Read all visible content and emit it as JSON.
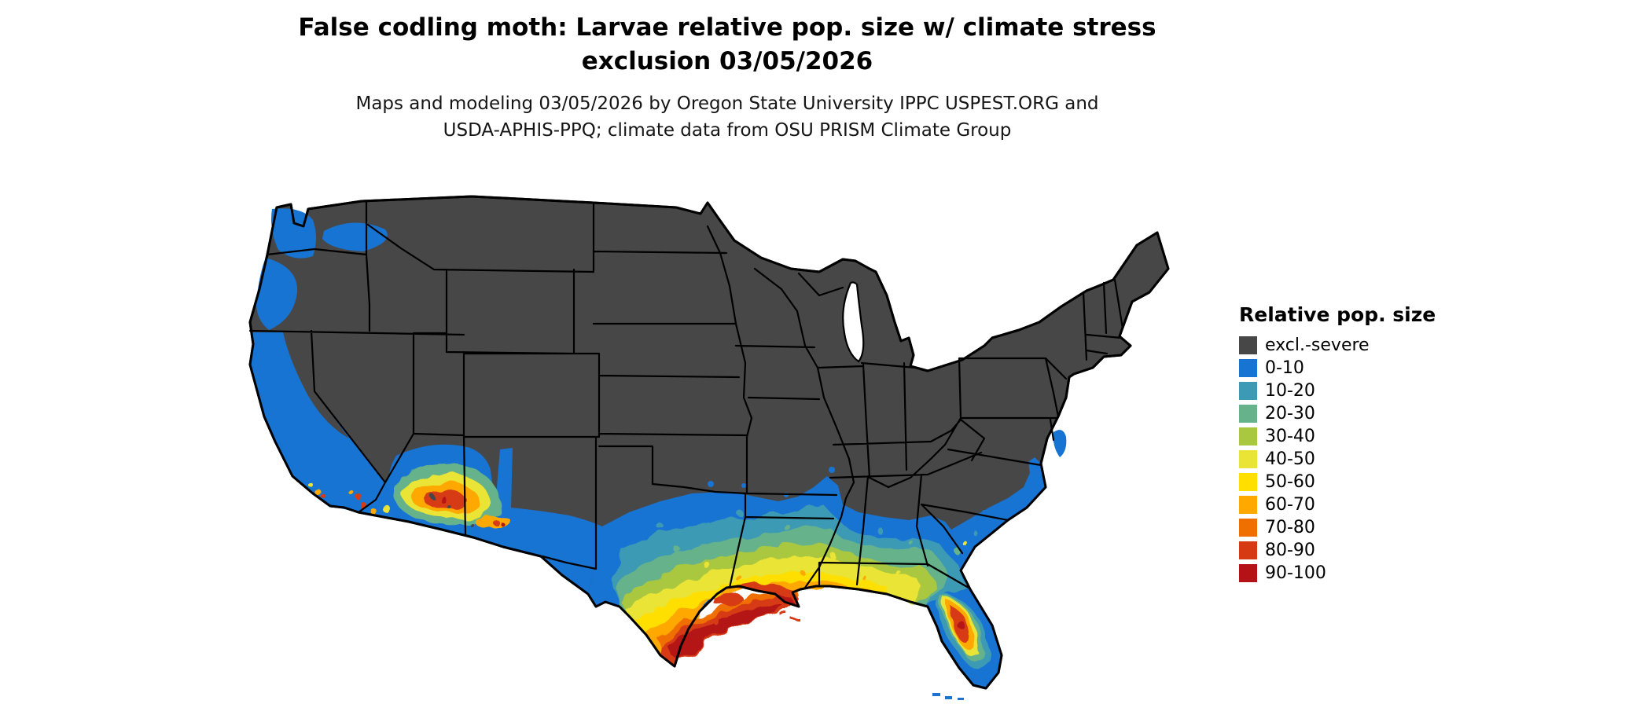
{
  "title": {
    "line1": "False codling moth: Larvae relative pop. size w/ climate stress",
    "line2": "exclusion 03/05/2026"
  },
  "subtitle": {
    "line1": "Maps and modeling 03/05/2026 by Oregon State University IPPC USPEST.ORG and",
    "line2": "USDA-APHIS-PPQ; climate data from OSU PRISM Climate Group"
  },
  "legend": {
    "title": "Relative pop. size",
    "items": [
      {
        "label": "excl.-severe",
        "color": "#474747"
      },
      {
        "label": "0-10",
        "color": "#1874d2"
      },
      {
        "label": "10-20",
        "color": "#3d9ab5"
      },
      {
        "label": "20-30",
        "color": "#66b38b"
      },
      {
        "label": "30-40",
        "color": "#a9c83f"
      },
      {
        "label": "40-50",
        "color": "#e9e435"
      },
      {
        "label": "50-60",
        "color": "#ffdf00"
      },
      {
        "label": "60-70",
        "color": "#ffa800"
      },
      {
        "label": "70-80",
        "color": "#ef7000"
      },
      {
        "label": "80-90",
        "color": "#d63a12"
      },
      {
        "label": "90-100",
        "color": "#b41217"
      }
    ]
  }
}
